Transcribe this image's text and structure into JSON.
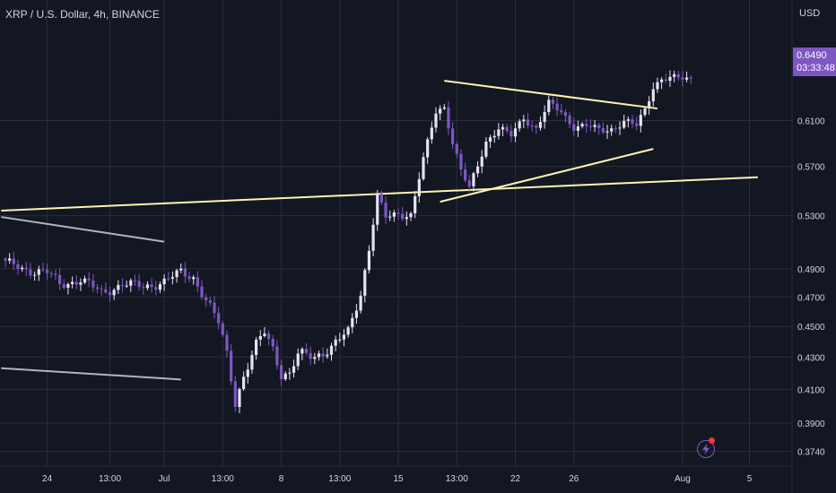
{
  "header": {
    "title": "XRP / U.S. Dollar, 4h, BINANCE"
  },
  "price_axis": {
    "currency": "USD",
    "last_price": "0.6490",
    "countdown": "03:33:48"
  },
  "colors": {
    "background": "#131722",
    "grid": "#2a2e39",
    "candle_up": "#e6e1f5",
    "candle_down": "#7e57c2",
    "trendline": "#fff3b0",
    "grey_line": "#b2b5be",
    "accent": "#7e57c2"
  },
  "icons": {
    "alert": "lightning-icon"
  },
  "chart_data": {
    "type": "candlestick",
    "title": "XRP / U.S. Dollar, 4h, BINANCE",
    "y_scale": "log",
    "ylim": [
      0.366,
      0.71
    ],
    "grid": true,
    "y_ticks": [
      "0.6100",
      "0.5700",
      "0.5300",
      "0.4900",
      "0.4700",
      "0.4500",
      "0.4300",
      "0.4100",
      "0.3900",
      "0.3740"
    ],
    "x_ticks": [
      {
        "label": "24",
        "index": 10
      },
      {
        "label": "13:00",
        "index": 25
      },
      {
        "label": "Jul",
        "index": 38
      },
      {
        "label": "13:00",
        "index": 52
      },
      {
        "label": "8",
        "index": 66
      },
      {
        "label": "13:00",
        "index": 80
      },
      {
        "label": "15",
        "index": 94
      },
      {
        "label": "13:00",
        "index": 108
      },
      {
        "label": "22",
        "index": 122
      },
      {
        "label": "26",
        "index": 136
      },
      {
        "label": "Aug",
        "index": 162
      },
      {
        "label": "5",
        "index": 178
      }
    ],
    "candle_count": 165,
    "anchors": [
      [
        0,
        0.494
      ],
      [
        6,
        0.489
      ],
      [
        10,
        0.487
      ],
      [
        13,
        0.479
      ],
      [
        18,
        0.482
      ],
      [
        23,
        0.473
      ],
      [
        28,
        0.479
      ],
      [
        33,
        0.477
      ],
      [
        38,
        0.481
      ],
      [
        42,
        0.487
      ],
      [
        45,
        0.484
      ],
      [
        48,
        0.468
      ],
      [
        51,
        0.452
      ],
      [
        53,
        0.432
      ],
      [
        55,
        0.403
      ],
      [
        57,
        0.418
      ],
      [
        60,
        0.437
      ],
      [
        62,
        0.446
      ],
      [
        64,
        0.436
      ],
      [
        66,
        0.42
      ],
      [
        68,
        0.419
      ],
      [
        70,
        0.431
      ],
      [
        74,
        0.431
      ],
      [
        78,
        0.436
      ],
      [
        82,
        0.446
      ],
      [
        85,
        0.473
      ],
      [
        87,
        0.505
      ],
      [
        89,
        0.545
      ],
      [
        91,
        0.528
      ],
      [
        94,
        0.532
      ],
      [
        97,
        0.531
      ],
      [
        100,
        0.575
      ],
      [
        103,
        0.618
      ],
      [
        105,
        0.623
      ],
      [
        107,
        0.591
      ],
      [
        109,
        0.566
      ],
      [
        111,
        0.551
      ],
      [
        113,
        0.571
      ],
      [
        115,
        0.592
      ],
      [
        118,
        0.603
      ],
      [
        121,
        0.596
      ],
      [
        124,
        0.613
      ],
      [
        127,
        0.603
      ],
      [
        130,
        0.625
      ],
      [
        133,
        0.618
      ],
      [
        136,
        0.605
      ],
      [
        139,
        0.605
      ],
      [
        142,
        0.601
      ],
      [
        145,
        0.603
      ],
      [
        148,
        0.609
      ],
      [
        151,
        0.605
      ],
      [
        153,
        0.62
      ],
      [
        155,
        0.642
      ],
      [
        157,
        0.649
      ],
      [
        159,
        0.649
      ]
    ],
    "trendlines": [
      {
        "name": "long-support",
        "color": "trendline",
        "from": [
          -1,
          0.534
        ],
        "to": [
          180,
          0.561
        ]
      },
      {
        "name": "triangle-upper",
        "color": "trendline",
        "from": [
          105,
          0.647
        ],
        "to": [
          156,
          0.621
        ]
      },
      {
        "name": "triangle-lower",
        "color": "trendline",
        "from": [
          104,
          0.541
        ],
        "to": [
          155,
          0.585
        ]
      },
      {
        "name": "grey-upper",
        "color": "grey_line",
        "from": [
          -1,
          0.529
        ],
        "to": [
          38,
          0.51
        ]
      },
      {
        "name": "grey-lower",
        "color": "grey_line",
        "from": [
          -1,
          0.423
        ],
        "to": [
          42,
          0.416
        ]
      }
    ]
  }
}
